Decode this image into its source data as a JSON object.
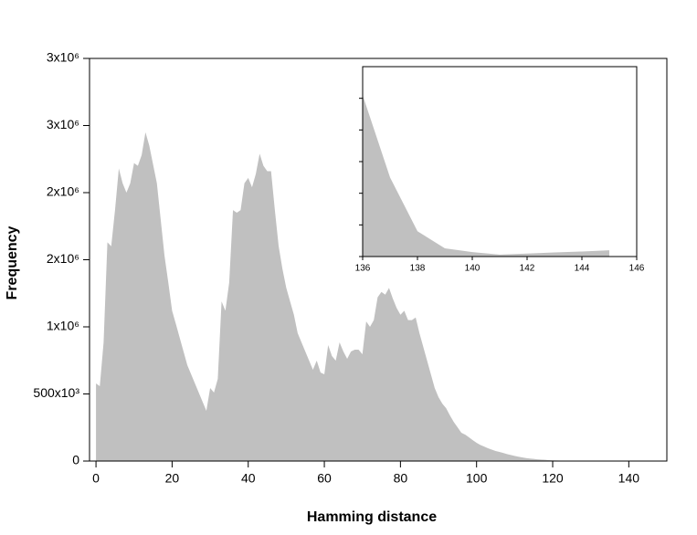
{
  "chart_data": [
    {
      "type": "area",
      "xlabel": "Hamming distance",
      "ylabel": "Frequency",
      "color": "#c0c0c0",
      "x": [
        0,
        1,
        2,
        3,
        4,
        5,
        6,
        7,
        8,
        9,
        10,
        11,
        12,
        13,
        14,
        15,
        16,
        17,
        18,
        19,
        20,
        21,
        22,
        23,
        24,
        25,
        26,
        27,
        28,
        29,
        30,
        31,
        32,
        33,
        34,
        35,
        36,
        37,
        38,
        39,
        40,
        41,
        42,
        43,
        44,
        45,
        46,
        47,
        48,
        49,
        50,
        51,
        52,
        53,
        54,
        55,
        56,
        57,
        58,
        59,
        60,
        61,
        62,
        63,
        64,
        65,
        66,
        67,
        68,
        69,
        70,
        71,
        72,
        73,
        74,
        75,
        76,
        77,
        78,
        79,
        80,
        81,
        82,
        83,
        84,
        85,
        86,
        87,
        88,
        89,
        90,
        91,
        92,
        93,
        94,
        95,
        96,
        97,
        98,
        99,
        100,
        101,
        102,
        103,
        104,
        105,
        106,
        107,
        108,
        109,
        110,
        111,
        112,
        113,
        114,
        115,
        116,
        117,
        118,
        119,
        120,
        121,
        122,
        123,
        124,
        125,
        126,
        127,
        128,
        129,
        130,
        131,
        132,
        133,
        134,
        135,
        136,
        137,
        138,
        139,
        140,
        141,
        142,
        143,
        144,
        145
      ],
      "values": [
        578000,
        558000,
        884000,
        1630000,
        1600000,
        1870000,
        2180000,
        2070000,
        2000000,
        2070000,
        2220000,
        2200000,
        2280000,
        2450000,
        2350000,
        2210000,
        2070000,
        1800000,
        1530000,
        1330000,
        1120000,
        1020000,
        918000,
        816000,
        714000,
        646000,
        578000,
        510000,
        442000,
        374000,
        544000,
        510000,
        612000,
        1190000,
        1120000,
        1330000,
        1870000,
        1850000,
        1870000,
        2070000,
        2110000,
        2040000,
        2140000,
        2290000,
        2200000,
        2160000,
        2160000,
        1870000,
        1600000,
        1430000,
        1290000,
        1190000,
        1090000,
        952000,
        884000,
        816000,
        748000,
        680000,
        748000,
        660000,
        646000,
        864000,
        782000,
        748000,
        884000,
        816000,
        762000,
        816000,
        830000,
        830000,
        796000,
        1040000,
        1000000,
        1050000,
        1220000,
        1260000,
        1240000,
        1290000,
        1210000,
        1140000,
        1090000,
        1120000,
        1050000,
        1050000,
        1070000,
        952000,
        850000,
        748000,
        646000,
        544000,
        476000,
        428000,
        394000,
        340000,
        292000,
        252000,
        211000,
        197000,
        177000,
        156000,
        136000,
        120000,
        108000,
        95000,
        85000,
        75000,
        68000,
        60000,
        52000,
        45000,
        38000,
        32000,
        27000,
        22000,
        19000,
        16000,
        13000,
        11000,
        9000,
        7000,
        5500,
        4500,
        3500,
        2800,
        2200,
        1700,
        1300,
        1000,
        800,
        600,
        450,
        350,
        250,
        180,
        130,
        90,
        51,
        25,
        8,
        2.6,
        1.4,
        0.6,
        0.95,
        1.3,
        1.6,
        2.0
      ],
      "xlim": [
        -1.7,
        150
      ],
      "xticks": [
        0,
        20,
        40,
        60,
        80,
        100,
        120,
        140
      ],
      "ylim": [
        0,
        3000000
      ],
      "yticks": [
        0,
        {
          "value": 500000,
          "label": "500x10³"
        },
        {
          "value": 1000000,
          "label": "1x10⁶"
        },
        {
          "value": 1500000,
          "label": "2x10⁶"
        },
        {
          "value": 2000000,
          "label": "2x10⁶"
        },
        {
          "value": 2500000,
          "label": "3x10⁶"
        },
        {
          "value": 3000000,
          "label": "3x10⁶"
        }
      ]
    },
    {
      "type": "area",
      "color": "#c0c0c0",
      "x": [
        136,
        137,
        138,
        139,
        140,
        141,
        142,
        143,
        144,
        145
      ],
      "values": [
        51,
        25,
        8,
        2.6,
        1.4,
        0.6,
        0.95,
        1.3,
        1.6,
        2.0
      ],
      "xlim": [
        136,
        146
      ],
      "xticks": [
        136,
        138,
        140,
        142,
        144,
        146
      ],
      "ylim": [
        0,
        60
      ],
      "yticks": [
        0,
        10,
        20,
        30,
        40,
        50
      ]
    }
  ]
}
